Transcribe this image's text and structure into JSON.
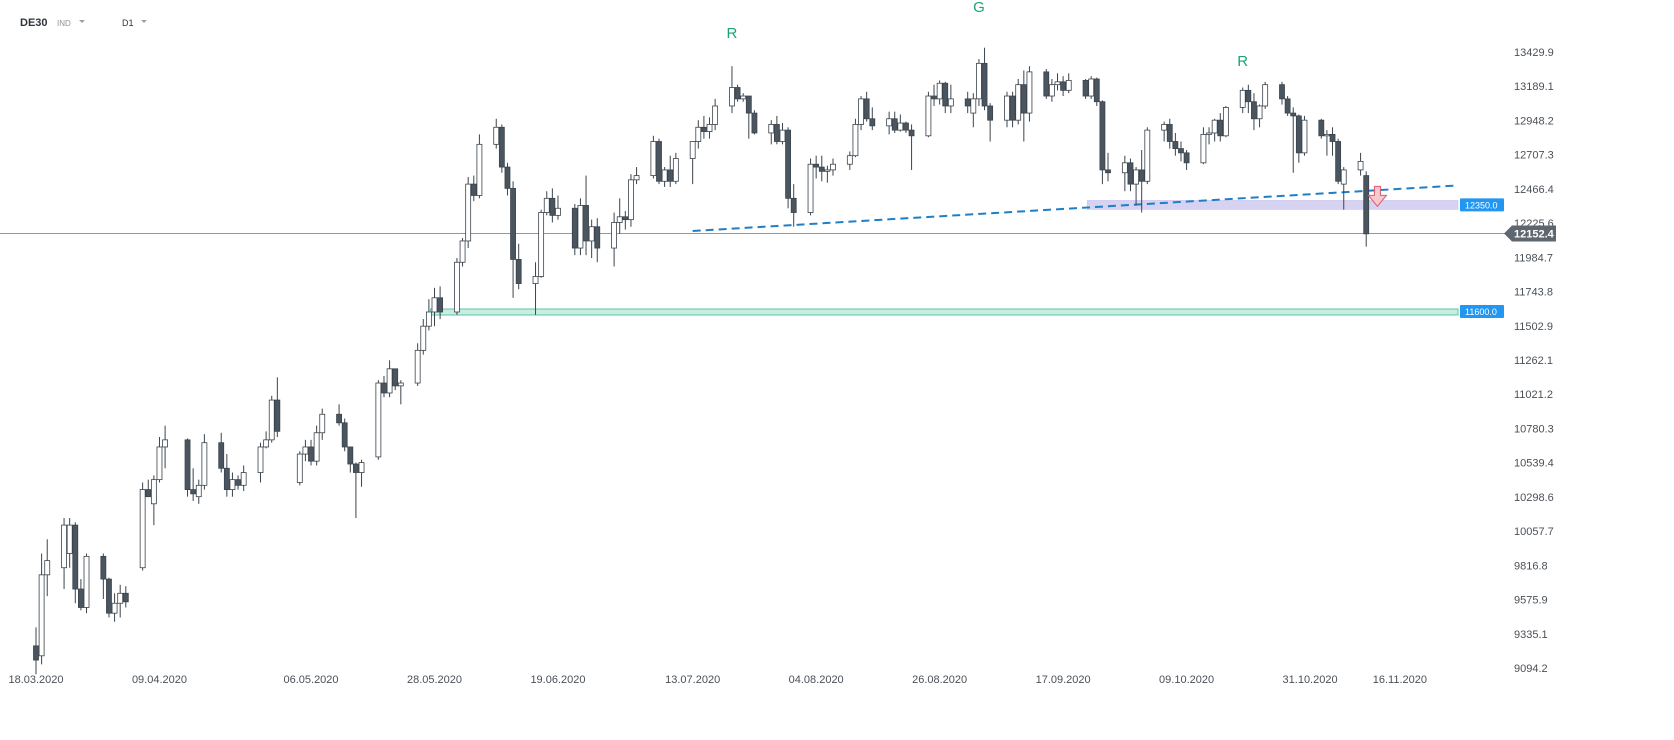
{
  "header": {
    "symbol": "DE30",
    "type": "IND",
    "timeframe": "D1"
  },
  "colors": {
    "bull_fill": "#ffffff",
    "bear_fill": "#4a5560",
    "wick": "#3b444c",
    "trendline": "#1f7fc6",
    "resistance_zone": "#c9c3ee",
    "support_zone": "#bfeadd",
    "support_zone_border": "#3fbf8f",
    "label_blue": "#2196f3",
    "current_price_bg": "#5e6770",
    "pattern_label": "#1aa37a",
    "arrow": "#e05a6b"
  },
  "chart_data": {
    "type": "candlestick",
    "ylim": [
      9094.2,
      13671.7
    ],
    "y_ticks": [
      "13429.9",
      "13189.1",
      "12948.2",
      "12707.3",
      "12466.4",
      "12225.6",
      "11984.7",
      "11743.8",
      "11502.9",
      "11262.1",
      "11021.2",
      "10780.3",
      "10539.4",
      "10298.6",
      "10057.7",
      "9816.8",
      "9575.9",
      "9335.1",
      "9094.2"
    ],
    "x_ticks": [
      {
        "label": "18.03.2020",
        "date": "2020-03-18"
      },
      {
        "label": "09.04.2020",
        "date": "2020-04-09"
      },
      {
        "label": "06.05.2020",
        "date": "2020-05-06"
      },
      {
        "label": "28.05.2020",
        "date": "2020-05-28"
      },
      {
        "label": "19.06.2020",
        "date": "2020-06-19"
      },
      {
        "label": "13.07.2020",
        "date": "2020-07-13"
      },
      {
        "label": "04.08.2020",
        "date": "2020-08-04"
      },
      {
        "label": "26.08.2020",
        "date": "2020-08-26"
      },
      {
        "label": "17.09.2020",
        "date": "2020-09-17"
      },
      {
        "label": "09.10.2020",
        "date": "2020-10-09"
      },
      {
        "label": "31.10.2020",
        "date": "2020-10-31"
      },
      {
        "label": "16.11.2020",
        "date": "2020-11-16"
      }
    ],
    "x_last_date": "2020-11-26",
    "candles": [
      [
        "2020-03-18",
        9250,
        9380,
        9050,
        9150
      ],
      [
        "2020-03-19",
        9180,
        9900,
        9120,
        9750
      ],
      [
        "2020-03-20",
        9750,
        10000,
        9600,
        9850
      ],
      [
        "2020-03-23",
        9800,
        10150,
        9650,
        10100
      ],
      [
        "2020-03-24",
        9900,
        10150,
        9800,
        10100
      ],
      [
        "2020-03-25",
        10100,
        10120,
        9550,
        9650
      ],
      [
        "2020-03-26",
        9650,
        9720,
        9500,
        9520
      ],
      [
        "2020-03-27",
        9520,
        9900,
        9480,
        9880
      ],
      [
        "2020-03-30",
        9880,
        9900,
        9580,
        9720
      ],
      [
        "2020-03-31",
        9720,
        9730,
        9450,
        9480
      ],
      [
        "2020-04-01",
        9480,
        9620,
        9420,
        9550
      ],
      [
        "2020-04-02",
        9550,
        9680,
        9450,
        9620
      ],
      [
        "2020-04-03",
        9620,
        9670,
        9520,
        9560
      ],
      [
        "2020-04-06",
        9800,
        10400,
        9780,
        10350
      ],
      [
        "2020-04-07",
        10350,
        10420,
        10300,
        10300
      ],
      [
        "2020-04-08",
        10250,
        10450,
        10100,
        10420
      ],
      [
        "2020-04-09",
        10420,
        10720,
        10400,
        10650
      ],
      [
        "2020-04-10",
        10650,
        10800,
        10500,
        10700
      ],
      [
        "2020-04-14",
        10700,
        10710,
        10300,
        10350
      ],
      [
        "2020-04-15",
        10350,
        10500,
        10270,
        10320
      ],
      [
        "2020-04-16",
        10300,
        10420,
        10250,
        10380
      ],
      [
        "2020-04-17",
        10380,
        10740,
        10350,
        10680
      ],
      [
        "2020-04-20",
        10680,
        10750,
        10470,
        10500
      ],
      [
        "2020-04-21",
        10500,
        10600,
        10300,
        10350
      ],
      [
        "2020-04-22",
        10350,
        10470,
        10300,
        10420
      ],
      [
        "2020-04-23",
        10420,
        10450,
        10350,
        10380
      ],
      [
        "2020-04-24",
        10380,
        10520,
        10340,
        10470
      ],
      [
        "2020-04-27",
        10470,
        10680,
        10400,
        10650
      ],
      [
        "2020-04-28",
        10650,
        10760,
        10640,
        10700
      ],
      [
        "2020-04-29",
        10700,
        11010,
        10680,
        10980
      ],
      [
        "2020-04-30",
        10980,
        11140,
        10720,
        10760
      ],
      [
        "2020-05-04",
        10400,
        10620,
        10380,
        10600
      ],
      [
        "2020-05-05",
        10600,
        10700,
        10550,
        10650
      ],
      [
        "2020-05-06",
        10650,
        10700,
        10520,
        10550
      ],
      [
        "2020-05-07",
        10550,
        10800,
        10520,
        10750
      ],
      [
        "2020-05-08",
        10750,
        10920,
        10700,
        10880
      ],
      [
        "2020-05-11",
        10880,
        10950,
        10800,
        10820
      ],
      [
        "2020-05-12",
        10820,
        10850,
        10620,
        10650
      ],
      [
        "2020-05-13",
        10650,
        10650,
        10470,
        10530
      ],
      [
        "2020-05-14",
        10530,
        10540,
        10150,
        10470
      ],
      [
        "2020-05-15",
        10470,
        10560,
        10370,
        10540
      ],
      [
        "2020-05-18",
        10580,
        11120,
        10560,
        11100
      ],
      [
        "2020-05-19",
        11100,
        11150,
        11000,
        11030
      ],
      [
        "2020-05-20",
        11030,
        11260,
        11000,
        11200
      ],
      [
        "2020-05-21",
        11200,
        11200,
        11050,
        11080
      ],
      [
        "2020-05-22",
        11080,
        11120,
        10950,
        11100
      ],
      [
        "2020-05-25",
        11100,
        11380,
        11080,
        11330
      ],
      [
        "2020-05-26",
        11330,
        11550,
        11300,
        11500
      ],
      [
        "2020-05-27",
        11500,
        11690,
        11470,
        11600
      ],
      [
        "2020-05-28",
        11600,
        11770,
        11500,
        11700
      ],
      [
        "2020-05-29",
        11700,
        11780,
        11550,
        11600
      ],
      [
        "2020-06-01",
        11600,
        11980,
        11580,
        11950
      ],
      [
        "2020-06-02",
        11950,
        12120,
        11920,
        12100
      ],
      [
        "2020-06-03",
        12100,
        12550,
        12050,
        12500
      ],
      [
        "2020-06-04",
        12500,
        12560,
        12380,
        12420
      ],
      [
        "2020-06-05",
        12420,
        12850,
        12400,
        12780
      ],
      [
        "2020-06-08",
        12780,
        12960,
        12750,
        12900
      ],
      [
        "2020-06-09",
        12900,
        12920,
        12580,
        12620
      ],
      [
        "2020-06-10",
        12620,
        12650,
        12420,
        12470
      ],
      [
        "2020-06-11",
        12470,
        12520,
        11700,
        11970
      ],
      [
        "2020-06-12",
        11970,
        12080,
        11760,
        11800
      ],
      [
        "2020-06-15",
        11800,
        11950,
        11580,
        11850
      ],
      [
        "2020-06-16",
        11850,
        12320,
        11840,
        12300
      ],
      [
        "2020-06-17",
        12300,
        12450,
        12280,
        12400
      ],
      [
        "2020-06-18",
        12400,
        12470,
        12230,
        12280
      ],
      [
        "2020-06-19",
        12280,
        12420,
        12250,
        12330
      ],
      [
        "2020-06-22",
        12330,
        12360,
        12000,
        12050
      ],
      [
        "2020-06-23",
        12050,
        12400,
        12000,
        12350
      ],
      [
        "2020-06-24",
        12350,
        12560,
        12000,
        12100
      ],
      [
        "2020-06-25",
        12100,
        12250,
        11980,
        12200
      ],
      [
        "2020-06-26",
        12200,
        12260,
        11950,
        12050
      ],
      [
        "2020-06-29",
        12050,
        12300,
        11920,
        12230
      ],
      [
        "2020-06-30",
        12230,
        12400,
        12150,
        12270
      ],
      [
        "2020-07-01",
        12270,
        12310,
        12180,
        12250
      ],
      [
        "2020-07-02",
        12250,
        12570,
        12200,
        12530
      ],
      [
        "2020-07-03",
        12530,
        12620,
        12500,
        12560
      ],
      [
        "2020-07-06",
        12560,
        12840,
        12540,
        12800
      ],
      [
        "2020-07-07",
        12800,
        12820,
        12500,
        12520
      ],
      [
        "2020-07-08",
        12520,
        12620,
        12480,
        12600
      ],
      [
        "2020-07-09",
        12600,
        12700,
        12480,
        12520
      ],
      [
        "2020-07-10",
        12520,
        12720,
        12500,
        12680
      ],
      [
        "2020-07-13",
        12680,
        12800,
        12500,
        12800
      ],
      [
        "2020-07-14",
        12800,
        12950,
        12750,
        12900
      ],
      [
        "2020-07-15",
        12900,
        12980,
        12820,
        12870
      ],
      [
        "2020-07-16",
        12870,
        12970,
        12820,
        12920
      ],
      [
        "2020-07-17",
        12920,
        13100,
        12880,
        13050
      ],
      [
        "2020-07-20",
        13050,
        13330,
        13000,
        13180
      ],
      [
        "2020-07-21",
        13180,
        13200,
        13080,
        13100
      ],
      [
        "2020-07-22",
        13100,
        13140,
        13080,
        13120
      ],
      [
        "2020-07-23",
        13120,
        13120,
        12820,
        13000
      ],
      [
        "2020-07-24",
        13000,
        13020,
        12850,
        12860
      ],
      [
        "2020-07-27",
        12860,
        12950,
        12780,
        12920
      ],
      [
        "2020-07-28",
        12920,
        12980,
        12780,
        12800
      ],
      [
        "2020-07-29",
        12800,
        12930,
        12780,
        12880
      ],
      [
        "2020-07-30",
        12880,
        12900,
        12330,
        12400
      ],
      [
        "2020-07-31",
        12400,
        12500,
        12200,
        12300
      ],
      [
        "2020-08-03",
        12300,
        12680,
        12280,
        12640
      ],
      [
        "2020-08-04",
        12640,
        12700,
        12540,
        12620
      ],
      [
        "2020-08-05",
        12620,
        12700,
        12520,
        12590
      ],
      [
        "2020-08-06",
        12590,
        12630,
        12510,
        12600
      ],
      [
        "2020-08-07",
        12600,
        12680,
        12560,
        12640
      ],
      [
        "2020-08-10",
        12640,
        12730,
        12600,
        12700
      ],
      [
        "2020-08-11",
        12700,
        12960,
        12690,
        12920
      ],
      [
        "2020-08-12",
        12920,
        13120,
        12880,
        13100
      ],
      [
        "2020-08-13",
        13100,
        13150,
        12940,
        12960
      ],
      [
        "2020-08-14",
        12960,
        13040,
        12880,
        12910
      ],
      [
        "2020-08-17",
        12910,
        13010,
        12850,
        12960
      ],
      [
        "2020-08-18",
        12960,
        13010,
        12860,
        12880
      ],
      [
        "2020-08-19",
        12880,
        12990,
        12870,
        12930
      ],
      [
        "2020-08-20",
        12930,
        12940,
        12860,
        12880
      ],
      [
        "2020-08-21",
        12880,
        12920,
        12600,
        12840
      ],
      [
        "2020-08-24",
        12840,
        13150,
        12830,
        13120
      ],
      [
        "2020-08-25",
        13120,
        13200,
        13050,
        13100
      ],
      [
        "2020-08-26",
        13100,
        13230,
        13060,
        13210
      ],
      [
        "2020-08-27",
        13210,
        13220,
        13000,
        13050
      ],
      [
        "2020-08-28",
        13050,
        13200,
        13000,
        13100
      ],
      [
        "2020-08-31",
        13100,
        13150,
        13000,
        13050
      ],
      [
        "2020-09-01",
        13000,
        13140,
        12900,
        13100
      ],
      [
        "2020-09-02",
        13100,
        13380,
        13050,
        13350
      ],
      [
        "2020-09-03",
        13350,
        13460,
        13020,
        13050
      ],
      [
        "2020-09-04",
        13050,
        13070,
        12800,
        12950
      ],
      [
        "2020-09-07",
        12950,
        13150,
        12900,
        13120
      ],
      [
        "2020-09-08",
        13120,
        13150,
        12900,
        12950
      ],
      [
        "2020-09-09",
        12950,
        13240,
        12920,
        13200
      ],
      [
        "2020-09-10",
        13200,
        13300,
        12800,
        13000
      ],
      [
        "2020-09-11",
        13000,
        13330,
        12940,
        13290
      ],
      [
        "2020-09-14",
        13290,
        13310,
        13100,
        13120
      ],
      [
        "2020-09-15",
        13120,
        13240,
        13080,
        13200
      ],
      [
        "2020-09-16",
        13200,
        13280,
        13160,
        13220
      ],
      [
        "2020-09-17",
        13220,
        13260,
        13120,
        13160
      ],
      [
        "2020-09-18",
        13160,
        13280,
        13140,
        13230
      ],
      [
        "2020-09-21",
        13230,
        13240,
        13100,
        13120
      ],
      [
        "2020-09-22",
        13120,
        13260,
        13100,
        13240
      ],
      [
        "2020-09-23",
        13240,
        13250,
        13050,
        13080
      ],
      [
        "2020-09-24",
        13080,
        13090,
        12500,
        12600
      ],
      [
        "2020-09-25",
        12600,
        12720,
        12520,
        12580
      ],
      [
        "2020-09-28",
        12580,
        12700,
        12450,
        12650
      ],
      [
        "2020-09-29",
        12650,
        12680,
        12450,
        12500
      ],
      [
        "2020-09-30",
        12500,
        12620,
        12350,
        12600
      ],
      [
        "2020-10-01",
        12600,
        12740,
        12300,
        12520
      ],
      [
        "2020-10-02",
        12520,
        12900,
        12500,
        12880
      ],
      [
        "2020-10-05",
        12880,
        12940,
        12800,
        12920
      ],
      [
        "2020-10-06",
        12920,
        12960,
        12750,
        12800
      ],
      [
        "2020-10-07",
        12800,
        12860,
        12700,
        12750
      ],
      [
        "2020-10-08",
        12750,
        12800,
        12660,
        12720
      ],
      [
        "2020-10-09",
        12720,
        12740,
        12600,
        12650
      ],
      [
        "2020-10-12",
        12650,
        12900,
        12640,
        12850
      ],
      [
        "2020-10-13",
        12850,
        12900,
        12780,
        12860
      ],
      [
        "2020-10-14",
        12860,
        12960,
        12800,
        12950
      ],
      [
        "2020-10-15",
        12950,
        13000,
        12800,
        12840
      ],
      [
        "2020-10-16",
        12840,
        13050,
        12830,
        13040
      ],
      [
        "2020-10-19",
        13040,
        13180,
        13000,
        13160
      ],
      [
        "2020-10-20",
        13160,
        13200,
        13000,
        13080
      ],
      [
        "2020-10-21",
        13080,
        13140,
        12880,
        12960
      ],
      [
        "2020-10-22",
        12960,
        13060,
        12900,
        13050
      ],
      [
        "2020-10-23",
        13050,
        13220,
        13030,
        13200
      ],
      [
        "2020-10-26",
        13200,
        13220,
        13060,
        13100
      ],
      [
        "2020-10-27",
        13100,
        13120,
        12980,
        13000
      ],
      [
        "2020-10-28",
        13000,
        13040,
        12580,
        12980
      ],
      [
        "2020-10-29",
        12980,
        12990,
        12650,
        12720
      ],
      [
        "2020-10-30",
        12720,
        12980,
        12700,
        12950
      ],
      [
        "2020-11-02",
        12950,
        12960,
        12820,
        12840
      ],
      [
        "2020-11-03",
        12840,
        12880,
        12700,
        12850
      ],
      [
        "2020-11-04",
        12850,
        12900,
        12700,
        12800
      ],
      [
        "2020-11-05",
        12800,
        12820,
        12500,
        12520
      ],
      [
        "2020-11-06",
        12500,
        12620,
        12320,
        12600
      ],
      [
        "2020-11-09",
        12600,
        12720,
        12560,
        12660
      ],
      [
        "2020-11-10",
        12560,
        12590,
        12060,
        12150
      ]
    ],
    "current_price": "12152.4",
    "levels": [
      {
        "label": "12350.0",
        "value": 12350,
        "kind": "resistance",
        "from_date": "2020-09-22"
      },
      {
        "label": "11600.0",
        "value": 11600,
        "kind": "support",
        "from_date": "2020-05-28"
      }
    ],
    "trendline": {
      "from": [
        "2020-07-13",
        12170
      ],
      "to": [
        "2020-11-26",
        12490
      ]
    },
    "annotations": [
      {
        "text": "R",
        "date": "2020-07-20",
        "price": 13530
      },
      {
        "text": "G",
        "date": "2020-09-02",
        "price": 13710
      },
      {
        "text": "R",
        "date": "2020-10-19",
        "price": 13330
      }
    ],
    "arrow": {
      "date": "2020-11-12",
      "price": 12400,
      "direction": "down"
    }
  }
}
